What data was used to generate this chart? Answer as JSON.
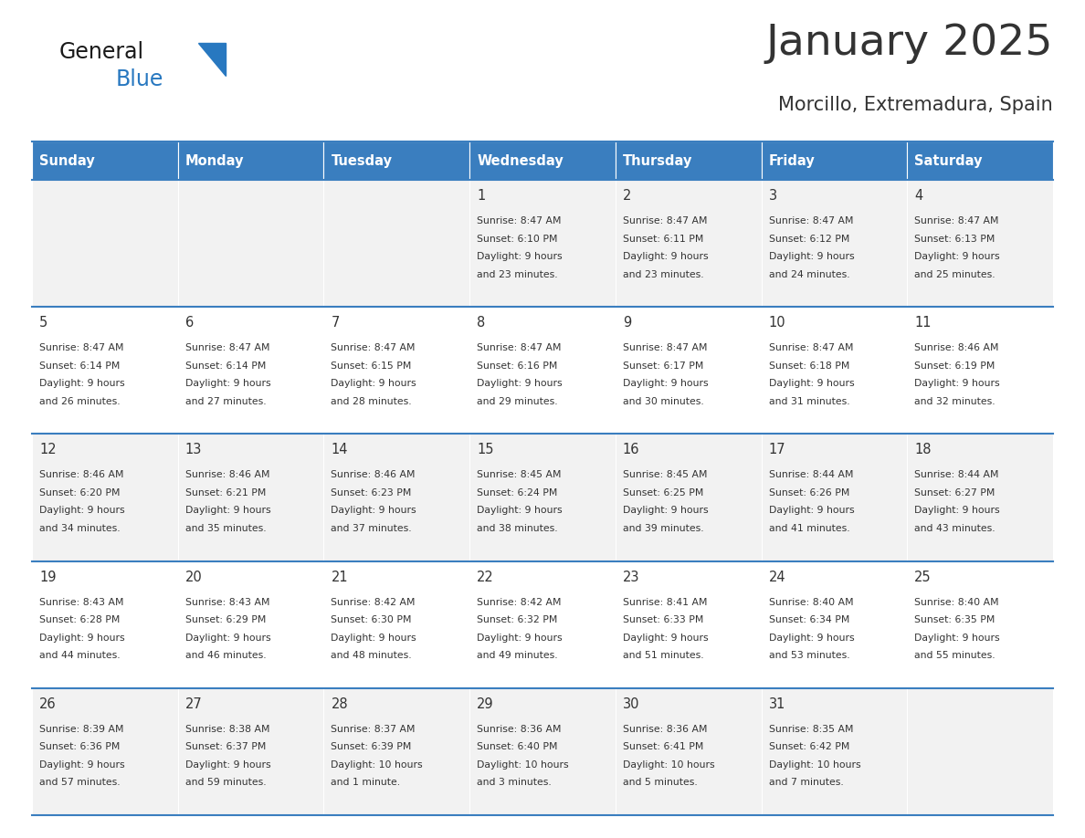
{
  "title": "January 2025",
  "subtitle": "Morcillo, Extremadura, Spain",
  "header_bg": "#3A7EBF",
  "header_text_color": "#FFFFFF",
  "cell_bg_odd": "#F2F2F2",
  "cell_bg_even": "#FFFFFF",
  "grid_line_color": "#3A7EBF",
  "text_color": "#333333",
  "days_of_week": [
    "Sunday",
    "Monday",
    "Tuesday",
    "Wednesday",
    "Thursday",
    "Friday",
    "Saturday"
  ],
  "calendar": [
    [
      {
        "day": "",
        "sunrise": "",
        "sunset": "",
        "daylight": ""
      },
      {
        "day": "",
        "sunrise": "",
        "sunset": "",
        "daylight": ""
      },
      {
        "day": "",
        "sunrise": "",
        "sunset": "",
        "daylight": ""
      },
      {
        "day": "1",
        "sunrise": "8:47 AM",
        "sunset": "6:10 PM",
        "daylight": "9 hours\nand 23 minutes."
      },
      {
        "day": "2",
        "sunrise": "8:47 AM",
        "sunset": "6:11 PM",
        "daylight": "9 hours\nand 23 minutes."
      },
      {
        "day": "3",
        "sunrise": "8:47 AM",
        "sunset": "6:12 PM",
        "daylight": "9 hours\nand 24 minutes."
      },
      {
        "day": "4",
        "sunrise": "8:47 AM",
        "sunset": "6:13 PM",
        "daylight": "9 hours\nand 25 minutes."
      }
    ],
    [
      {
        "day": "5",
        "sunrise": "8:47 AM",
        "sunset": "6:14 PM",
        "daylight": "9 hours\nand 26 minutes."
      },
      {
        "day": "6",
        "sunrise": "8:47 AM",
        "sunset": "6:14 PM",
        "daylight": "9 hours\nand 27 minutes."
      },
      {
        "day": "7",
        "sunrise": "8:47 AM",
        "sunset": "6:15 PM",
        "daylight": "9 hours\nand 28 minutes."
      },
      {
        "day": "8",
        "sunrise": "8:47 AM",
        "sunset": "6:16 PM",
        "daylight": "9 hours\nand 29 minutes."
      },
      {
        "day": "9",
        "sunrise": "8:47 AM",
        "sunset": "6:17 PM",
        "daylight": "9 hours\nand 30 minutes."
      },
      {
        "day": "10",
        "sunrise": "8:47 AM",
        "sunset": "6:18 PM",
        "daylight": "9 hours\nand 31 minutes."
      },
      {
        "day": "11",
        "sunrise": "8:46 AM",
        "sunset": "6:19 PM",
        "daylight": "9 hours\nand 32 minutes."
      }
    ],
    [
      {
        "day": "12",
        "sunrise": "8:46 AM",
        "sunset": "6:20 PM",
        "daylight": "9 hours\nand 34 minutes."
      },
      {
        "day": "13",
        "sunrise": "8:46 AM",
        "sunset": "6:21 PM",
        "daylight": "9 hours\nand 35 minutes."
      },
      {
        "day": "14",
        "sunrise": "8:46 AM",
        "sunset": "6:23 PM",
        "daylight": "9 hours\nand 37 minutes."
      },
      {
        "day": "15",
        "sunrise": "8:45 AM",
        "sunset": "6:24 PM",
        "daylight": "9 hours\nand 38 minutes."
      },
      {
        "day": "16",
        "sunrise": "8:45 AM",
        "sunset": "6:25 PM",
        "daylight": "9 hours\nand 39 minutes."
      },
      {
        "day": "17",
        "sunrise": "8:44 AM",
        "sunset": "6:26 PM",
        "daylight": "9 hours\nand 41 minutes."
      },
      {
        "day": "18",
        "sunrise": "8:44 AM",
        "sunset": "6:27 PM",
        "daylight": "9 hours\nand 43 minutes."
      }
    ],
    [
      {
        "day": "19",
        "sunrise": "8:43 AM",
        "sunset": "6:28 PM",
        "daylight": "9 hours\nand 44 minutes."
      },
      {
        "day": "20",
        "sunrise": "8:43 AM",
        "sunset": "6:29 PM",
        "daylight": "9 hours\nand 46 minutes."
      },
      {
        "day": "21",
        "sunrise": "8:42 AM",
        "sunset": "6:30 PM",
        "daylight": "9 hours\nand 48 minutes."
      },
      {
        "day": "22",
        "sunrise": "8:42 AM",
        "sunset": "6:32 PM",
        "daylight": "9 hours\nand 49 minutes."
      },
      {
        "day": "23",
        "sunrise": "8:41 AM",
        "sunset": "6:33 PM",
        "daylight": "9 hours\nand 51 minutes."
      },
      {
        "day": "24",
        "sunrise": "8:40 AM",
        "sunset": "6:34 PM",
        "daylight": "9 hours\nand 53 minutes."
      },
      {
        "day": "25",
        "sunrise": "8:40 AM",
        "sunset": "6:35 PM",
        "daylight": "9 hours\nand 55 minutes."
      }
    ],
    [
      {
        "day": "26",
        "sunrise": "8:39 AM",
        "sunset": "6:36 PM",
        "daylight": "9 hours\nand 57 minutes."
      },
      {
        "day": "27",
        "sunrise": "8:38 AM",
        "sunset": "6:37 PM",
        "daylight": "9 hours\nand 59 minutes."
      },
      {
        "day": "28",
        "sunrise": "8:37 AM",
        "sunset": "6:39 PM",
        "daylight": "10 hours\nand 1 minute."
      },
      {
        "day": "29",
        "sunrise": "8:36 AM",
        "sunset": "6:40 PM",
        "daylight": "10 hours\nand 3 minutes."
      },
      {
        "day": "30",
        "sunrise": "8:36 AM",
        "sunset": "6:41 PM",
        "daylight": "10 hours\nand 5 minutes."
      },
      {
        "day": "31",
        "sunrise": "8:35 AM",
        "sunset": "6:42 PM",
        "daylight": "10 hours\nand 7 minutes."
      },
      {
        "day": "",
        "sunrise": "",
        "sunset": "",
        "daylight": ""
      }
    ]
  ],
  "logo_general_color": "#1a1a1a",
  "logo_blue_color": "#2878C0",
  "logo_triangle_color": "#2878C0",
  "fig_width": 11.88,
  "fig_height": 9.18,
  "dpi": 100
}
